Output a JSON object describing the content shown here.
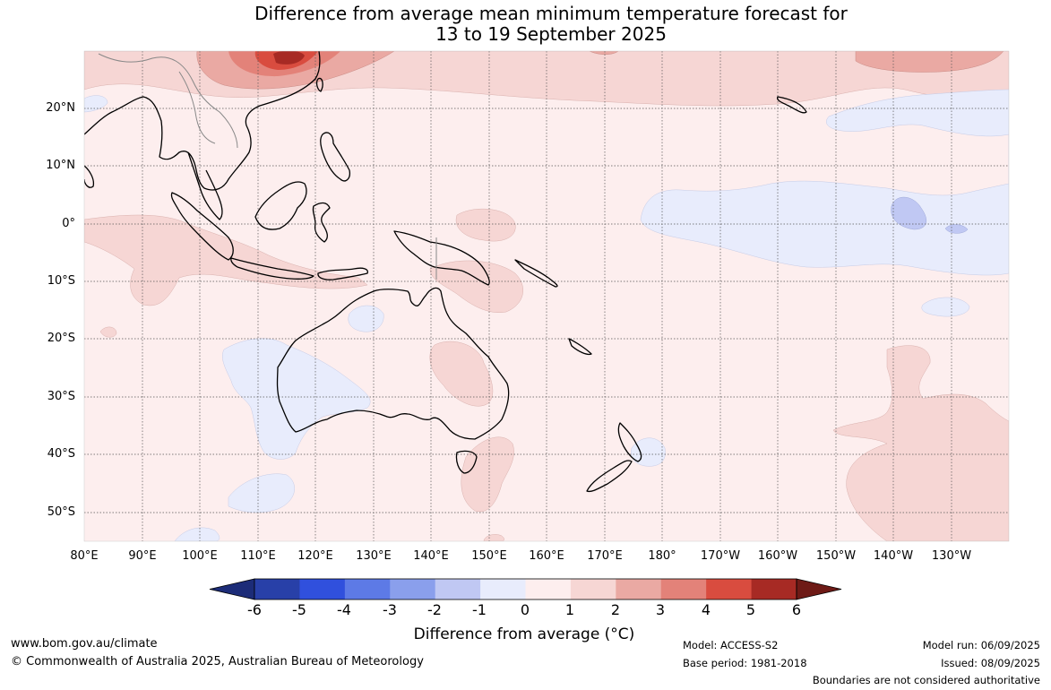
{
  "title": {
    "line1": "Difference from average mean minimum temperature forecast for",
    "line2": "13 to 19 September 2025"
  },
  "map": {
    "lat_labels": [
      "20°N",
      "10°N",
      "0°",
      "10°S",
      "20°S",
      "30°S",
      "40°S",
      "50°S"
    ],
    "lon_labels": [
      "80°E",
      "90°E",
      "100°E",
      "110°E",
      "120°E",
      "130°E",
      "140°E",
      "150°E",
      "160°E",
      "170°E",
      "180°",
      "170°W",
      "160°W",
      "150°W",
      "140°W",
      "130°W"
    ],
    "lat_range": [
      -55,
      30
    ],
    "lon_range": [
      80,
      240
    ],
    "grid": true
  },
  "colorbar": {
    "ticks": [
      "-6",
      "-5",
      "-4",
      "-3",
      "-2",
      "-1",
      "0",
      "1",
      "2",
      "3",
      "4",
      "5",
      "6"
    ],
    "colors": [
      "#2840a8",
      "#3050dd",
      "#5d7ae6",
      "#8a9fec",
      "#c0c8f3",
      "#e8ecfc",
      "#fdeeee",
      "#f6d6d4",
      "#eaa9a3",
      "#e38279",
      "#d94c3f",
      "#a72a24"
    ],
    "end_low": "#1c2c78",
    "end_high": "#6e1a16",
    "title": "Difference from average (°C)"
  },
  "footer": {
    "url": "www.bom.gov.au/climate",
    "copyright": "© Commonwealth of Australia 2025, Australian Bureau of Meteorology",
    "model": "Model: ACCESS-S2",
    "base_period": "Base period: 1981-2018",
    "model_run": "Model run: 06/09/2025",
    "issued": "Issued: 08/09/2025",
    "disclaimer": "Boundaries are not considered authoritative"
  }
}
